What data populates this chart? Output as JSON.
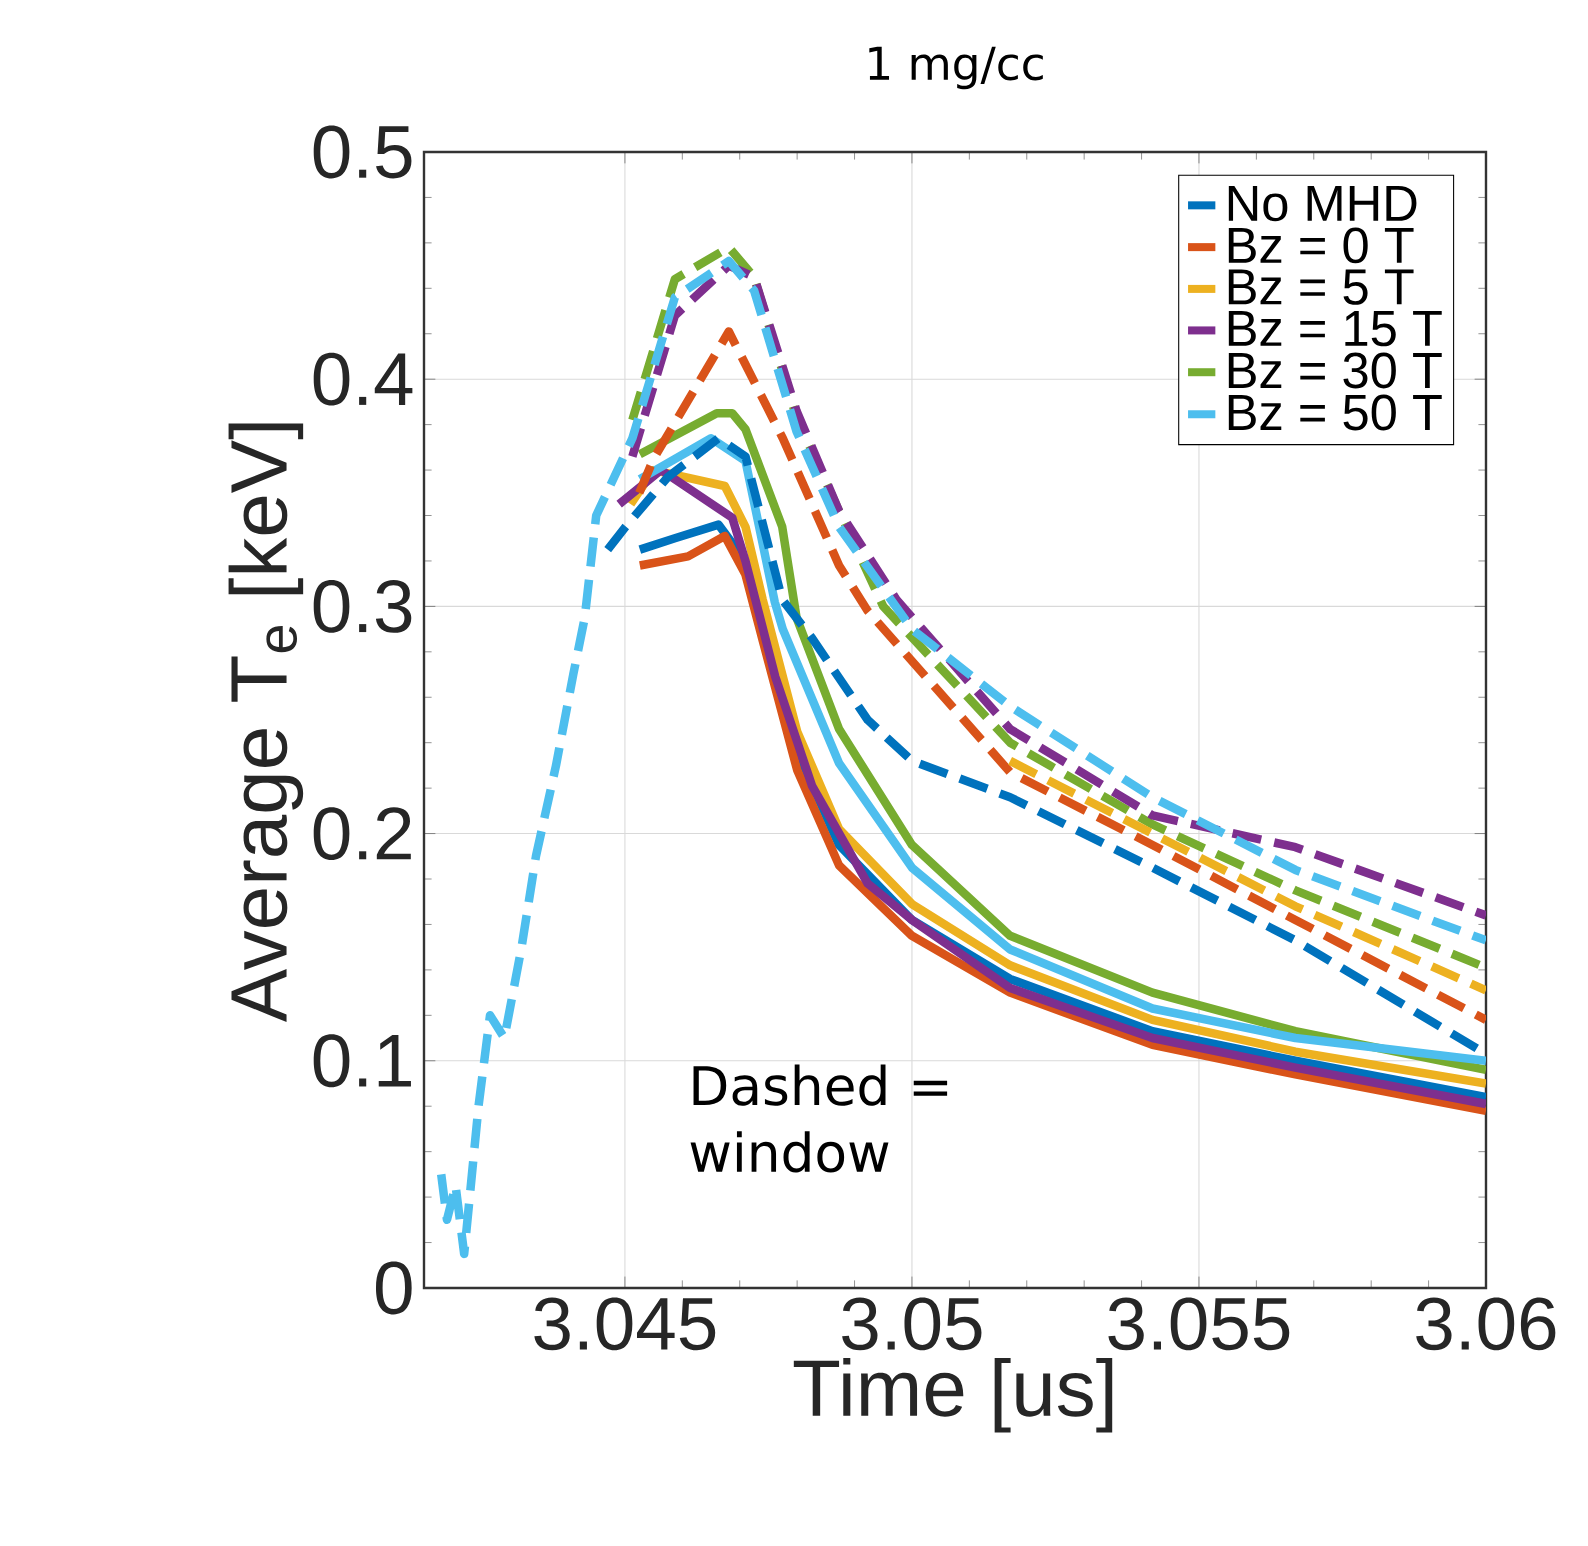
{
  "chart_data": {
    "type": "line",
    "title": "1 mg/cc",
    "xlabel": "Time [us]",
    "ylabel": "Average T$_{e}$ [keV]",
    "xlim": [
      3.0415,
      3.06
    ],
    "ylim": [
      0,
      0.5
    ],
    "xticks": [
      3.045,
      3.05,
      3.055,
      3.06
    ],
    "yticks": [
      0,
      0.1,
      0.2,
      0.3,
      0.4,
      0.5
    ],
    "grid": true,
    "legend": "top right",
    "annotations": [
      "Dashed = window"
    ],
    "series": [
      {
        "name": "No MHD",
        "color": "#0072bd",
        "line_style": "solid",
        "x": [
          3.04526,
          3.04587,
          3.04663,
          3.0471,
          3.04736,
          3.04799,
          3.04873,
          3.05,
          3.05171,
          3.05419,
          3.05668,
          3.06
        ],
        "values": [
          0.325,
          0.33,
          0.336,
          0.32,
          0.295,
          0.237,
          0.195,
          0.162,
          0.136,
          0.113,
          0.1,
          0.084
        ]
      },
      {
        "name": "Bz = 0 T",
        "color": "#d95319",
        "line_style": "solid",
        "x": [
          3.04526,
          3.0461,
          3.04674,
          3.0471,
          3.0474,
          3.048,
          3.04873,
          3.05,
          3.05171,
          3.05419,
          3.05668,
          3.06
        ],
        "values": [
          0.318,
          0.322,
          0.331,
          0.314,
          0.285,
          0.228,
          0.186,
          0.155,
          0.13,
          0.107,
          0.094,
          0.078
        ]
      },
      {
        "name": "Bz = 5 T",
        "color": "#edb120",
        "line_style": "solid",
        "x": [
          3.0451,
          3.0455,
          3.04674,
          3.0471,
          3.0474,
          3.048,
          3.04873,
          3.05,
          3.05171,
          3.05419,
          3.05668,
          3.06
        ],
        "values": [
          0.345,
          0.36,
          0.353,
          0.335,
          0.303,
          0.245,
          0.202,
          0.169,
          0.142,
          0.118,
          0.104,
          0.09
        ]
      },
      {
        "name": "Bz = 15 T",
        "color": "#7e2f8e",
        "line_style": "solid",
        "x": [
          3.0449,
          3.04563,
          3.04687,
          3.0471,
          3.04762,
          3.04826,
          3.04923,
          3.05,
          3.05171,
          3.05419,
          3.05668,
          3.06
        ],
        "values": [
          0.345,
          0.36,
          0.339,
          0.32,
          0.269,
          0.221,
          0.178,
          0.162,
          0.132,
          0.11,
          0.097,
          0.081
        ]
      },
      {
        "name": "Bz = 30 T",
        "color": "#77ac30",
        "line_style": "solid",
        "x": [
          3.04526,
          3.0466,
          3.04687,
          3.0471,
          3.04774,
          3.04799,
          3.04873,
          3.05,
          3.05171,
          3.05419,
          3.05668,
          3.06
        ],
        "values": [
          0.367,
          0.385,
          0.385,
          0.378,
          0.335,
          0.295,
          0.246,
          0.195,
          0.155,
          0.13,
          0.113,
          0.096
        ]
      },
      {
        "name": "Bz = 50 T",
        "color": "#4dbeee",
        "line_style": "solid",
        "x": [
          3.04526,
          3.0465,
          3.0471,
          3.04761,
          3.04775,
          3.04873,
          3.05,
          3.05171,
          3.05419,
          3.05668,
          3.06
        ],
        "values": [
          0.356,
          0.374,
          0.364,
          0.302,
          0.29,
          0.231,
          0.185,
          0.149,
          0.123,
          0.11,
          0.1
        ]
      },
      {
        "color": "#0072bd",
        "line_style": "dashed",
        "x": [
          3.0447,
          3.04501,
          3.04575,
          3.04663,
          3.0471,
          3.04774,
          3.04826,
          3.04923,
          3.05,
          3.05171,
          3.05419,
          3.05668,
          3.06
        ],
        "values": [
          0.325,
          0.335,
          0.357,
          0.374,
          0.366,
          0.303,
          0.286,
          0.25,
          0.232,
          0.216,
          0.185,
          0.153,
          0.103
        ]
      },
      {
        "color": "#d95319",
        "line_style": "dashed",
        "x": [
          3.04525,
          3.0455,
          3.04681,
          3.04775,
          3.04873,
          3.04923,
          3.05171,
          3.05419,
          3.05668,
          3.06
        ],
        "values": [
          0.35,
          0.365,
          0.421,
          0.374,
          0.318,
          0.298,
          0.227,
          0.195,
          0.162,
          0.118
        ]
      },
      {
        "color": "#77ac30",
        "line_style": "dashed",
        "x": [
          3.04513,
          3.04587,
          3.04681,
          3.04725,
          3.04799,
          3.04873,
          3.0495,
          3.05171,
          3.05419,
          3.05668,
          3.06
        ],
        "values": [
          0.382,
          0.444,
          0.458,
          0.445,
          0.383,
          0.342,
          0.3,
          0.24,
          0.204,
          0.175,
          0.141
        ]
      },
      {
        "color": "#7e2f8e",
        "line_style": "dashed",
        "x": [
          3.04513,
          3.04587,
          3.04681,
          3.04725,
          3.04799,
          3.04873,
          3.04973,
          3.05171,
          3.05419,
          3.05668,
          3.06
        ],
        "values": [
          0.366,
          0.428,
          0.45,
          0.445,
          0.386,
          0.342,
          0.303,
          0.246,
          0.208,
          0.194,
          0.164
        ]
      },
      {
        "color": "#4dbeee",
        "line_style": "dashed",
        "x": [
          3.0418,
          3.0419,
          3.04205,
          3.0422,
          3.04245,
          3.04265,
          3.0429,
          3.0432,
          3.04345,
          3.0438,
          3.0441,
          3.0443,
          3.0445,
          3.04513,
          3.04587,
          3.04681,
          3.04725,
          3.04799,
          3.04873,
          3.05,
          3.05171,
          3.05419,
          3.05668,
          3.06
        ],
        "values": [
          0.05,
          0.03,
          0.045,
          0.015,
          0.08,
          0.12,
          0.11,
          0.15,
          0.19,
          0.23,
          0.27,
          0.295,
          0.34,
          0.374,
          0.436,
          0.452,
          0.439,
          0.377,
          0.335,
          0.29,
          0.256,
          0.216,
          0.184,
          0.153
        ]
      },
      {
        "color": "#edb120",
        "line_style": "dashed",
        "x": [
          3.05171,
          3.05419,
          3.05668,
          3.06
        ],
        "values": [
          0.232,
          0.2,
          0.168,
          0.131
        ]
      }
    ]
  }
}
